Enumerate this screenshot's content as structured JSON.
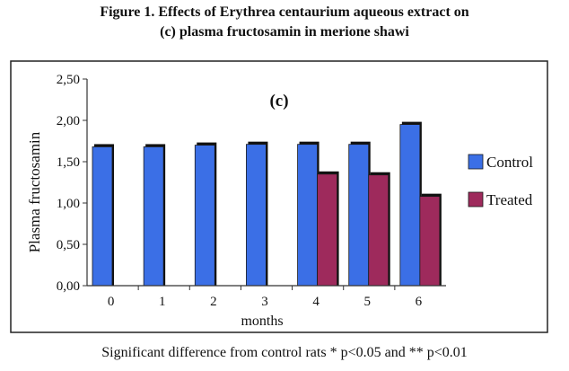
{
  "figure": {
    "title_line1": "Figure 1. Effects of Erythrea centaurium aqueous extract on",
    "title_line2": "(c) plasma fructosamin in merione shawi",
    "footnote": "Significant difference from control rats * p<0.05 and ** p<0.01"
  },
  "chart_data": {
    "type": "bar",
    "title": "(c)",
    "xlabel": "months",
    "ylabel": "Plasma fructosamin",
    "categories": [
      "0",
      "1",
      "2",
      "3",
      "4",
      "5",
      "6"
    ],
    "ylim": [
      0,
      2.5
    ],
    "yticks": [
      "0,00",
      "0,50",
      "1,00",
      "1,50",
      "2,00",
      "2,50"
    ],
    "grid": false,
    "legend_position": "right",
    "series": [
      {
        "name": "Control",
        "color": "#3b6fe6",
        "values": [
          1.68,
          1.68,
          1.7,
          1.71,
          1.71,
          1.71,
          1.95
        ]
      },
      {
        "name": "Treated",
        "color": "#9e2a5c",
        "values": [
          null,
          null,
          null,
          null,
          1.35,
          1.34,
          1.08
        ]
      }
    ]
  }
}
